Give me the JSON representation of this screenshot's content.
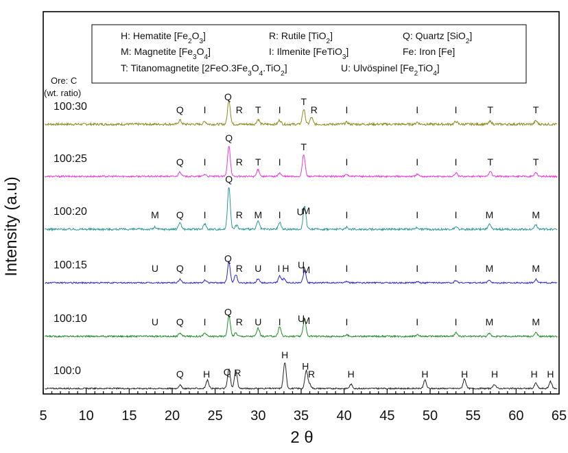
{
  "chart_data": {
    "type": "line",
    "title": "",
    "xlabel": "2 θ",
    "ylabel": "Intensity (a.u)",
    "xlim": [
      5,
      65
    ],
    "xticks": [
      "5",
      "10",
      "15",
      "20",
      "25",
      "30",
      "35",
      "40",
      "45",
      "50",
      "55",
      "60",
      "65"
    ],
    "legend": [
      [
        "H: Hematite  [Fe",
        "2",
        "O",
        "3",
        "]"
      ],
      [
        "R: Rutile  [TiO",
        "2",
        "]"
      ],
      [
        "Q: Quartz  [SiO",
        "2",
        "]"
      ],
      [
        "M: Magnetite [Fe",
        "3",
        "O",
        "4",
        "]"
      ],
      [
        "I: Ilmenite [FeTiO",
        "3",
        "]"
      ],
      [
        "Fe: Iron     [Fe]"
      ],
      [
        "T: Titanomagnetite [2FeO.3Fe",
        "3",
        "O",
        "4",
        ".TiO",
        "2",
        "]"
      ],
      [
        "U: Ulvöspinel [Fe",
        "2",
        "TiO",
        "4",
        "]"
      ]
    ],
    "ore_note": [
      "Ore: C",
      "(wt. ratio)"
    ],
    "series": [
      {
        "name": "100:30",
        "color": "#8c8a1f",
        "base": 181,
        "amp": 0.85,
        "peaks": [
          [
            26.6,
            35
          ],
          [
            35.3,
            22
          ],
          [
            36.2,
            10
          ],
          [
            20.9,
            6
          ],
          [
            30,
            7
          ],
          [
            23.8,
            4
          ],
          [
            32.5,
            6
          ],
          [
            40.3,
            3
          ],
          [
            48.5,
            3
          ],
          [
            53,
            4
          ],
          [
            57,
            4
          ],
          [
            62.3,
            5
          ]
        ],
        "labels": [
          [
            "Q",
            20.9,
            "base"
          ],
          [
            "I",
            23.8,
            "base"
          ],
          [
            "Q",
            26.5,
            "peak"
          ],
          [
            "R",
            27.8,
            "base"
          ],
          [
            "T",
            30,
            "base"
          ],
          [
            "I",
            32.5,
            "base"
          ],
          [
            "T",
            35.3,
            "peak"
          ],
          [
            "R",
            36.5,
            "base"
          ],
          [
            "I",
            40.3,
            "base"
          ],
          [
            "I",
            48.5,
            "base"
          ],
          [
            "I",
            53,
            "base"
          ],
          [
            "T",
            57,
            "base"
          ],
          [
            "T",
            62.3,
            "base"
          ]
        ]
      },
      {
        "name": "100:25",
        "color": "#e838d8",
        "base": 257,
        "amp": 0.6,
        "peaks": [
          [
            26.6,
            45
          ],
          [
            35.3,
            32
          ],
          [
            30,
            10
          ],
          [
            20.9,
            7
          ],
          [
            23.8,
            3
          ],
          [
            32.5,
            5
          ],
          [
            40.3,
            3
          ],
          [
            48.5,
            3
          ],
          [
            53,
            5
          ],
          [
            57,
            8
          ],
          [
            62.3,
            6
          ]
        ],
        "labels": [
          [
            "Q",
            20.9,
            "base"
          ],
          [
            "I",
            23.8,
            "base"
          ],
          [
            "Q",
            26.6,
            "peak"
          ],
          [
            "R",
            27.8,
            "base"
          ],
          [
            "T",
            30,
            "base"
          ],
          [
            "I",
            32.5,
            "base"
          ],
          [
            "T",
            35.3,
            "peak"
          ],
          [
            "I",
            40.3,
            "base"
          ],
          [
            "I",
            48.5,
            "base"
          ],
          [
            "I",
            53,
            "base"
          ],
          [
            "T",
            57,
            "base"
          ],
          [
            "T",
            62.3,
            "base"
          ]
        ]
      },
      {
        "name": "100:20",
        "color": "#2a9898",
        "base": 334,
        "amp": 0.75,
        "peaks": [
          [
            26.6,
            62
          ],
          [
            35.4,
            35
          ],
          [
            30,
            12
          ],
          [
            20.9,
            10
          ],
          [
            23.8,
            8
          ],
          [
            32.5,
            10
          ],
          [
            27.5,
            6
          ],
          [
            40.3,
            3
          ],
          [
            48.5,
            3
          ],
          [
            53,
            3
          ],
          [
            56.9,
            7
          ],
          [
            62.3,
            7
          ],
          [
            18,
            3
          ]
        ],
        "labels": [
          [
            "M",
            18,
            "base"
          ],
          [
            "Q",
            20.9,
            "base"
          ],
          [
            "I",
            23.8,
            "base"
          ],
          [
            "Q",
            26.6,
            "peak"
          ],
          [
            "R",
            27.8,
            "base"
          ],
          [
            "M",
            30,
            "base"
          ],
          [
            "I",
            32.5,
            "base"
          ],
          [
            "U",
            34.9,
            "peakhi"
          ],
          [
            "M",
            35.6,
            "peak"
          ],
          [
            "I",
            40.3,
            "base"
          ],
          [
            "I",
            48.5,
            "base"
          ],
          [
            "I",
            53,
            "base"
          ],
          [
            "M",
            56.9,
            "base"
          ],
          [
            "M",
            62.3,
            "base"
          ]
        ]
      },
      {
        "name": "100:15",
        "color": "#2323d8",
        "base": 412,
        "amp": 0.5,
        "peaks": [
          [
            26.6,
            30
          ],
          [
            27.4,
            12
          ],
          [
            35.4,
            18
          ],
          [
            32.5,
            10
          ],
          [
            33,
            6
          ],
          [
            30,
            6
          ],
          [
            20.9,
            5
          ],
          [
            23.8,
            4
          ],
          [
            40.3,
            2
          ],
          [
            48.5,
            2
          ],
          [
            53,
            3
          ],
          [
            56.9,
            4
          ],
          [
            62.3,
            5
          ]
        ],
        "labels": [
          [
            "U",
            18,
            "base"
          ],
          [
            "Q",
            20.9,
            "base"
          ],
          [
            "I",
            23.8,
            "base"
          ],
          [
            "Q",
            26.5,
            "peak"
          ],
          [
            "R",
            27.8,
            "base"
          ],
          [
            "U",
            30,
            "base"
          ],
          [
            "I",
            32.4,
            "base"
          ],
          [
            "H",
            33.2,
            "base"
          ],
          [
            "U",
            35,
            "peakhi"
          ],
          [
            "M",
            35.6,
            "peak"
          ],
          [
            "I",
            40.3,
            "base"
          ],
          [
            "I",
            48.5,
            "base"
          ],
          [
            "I",
            53,
            "base"
          ],
          [
            "M",
            56.9,
            "base"
          ],
          [
            "M",
            62.3,
            "base"
          ]
        ]
      },
      {
        "name": "100:10",
        "color": "#1f8a2a",
        "base": 490,
        "amp": 0.6,
        "peaks": [
          [
            26.6,
            30
          ],
          [
            35.4,
            26
          ],
          [
            30,
            12
          ],
          [
            32.5,
            14
          ],
          [
            20.9,
            5
          ],
          [
            23.8,
            5
          ],
          [
            27.4,
            5
          ],
          [
            40.3,
            2
          ],
          [
            48.5,
            2
          ],
          [
            53,
            5
          ],
          [
            56.9,
            4
          ],
          [
            62.3,
            5
          ]
        ],
        "labels": [
          [
            "U",
            18,
            "base"
          ],
          [
            "Q",
            20.9,
            "base"
          ],
          [
            "I",
            23.8,
            "base"
          ],
          [
            "Q",
            26.5,
            "peak"
          ],
          [
            "R",
            27.8,
            "base"
          ],
          [
            "U",
            30,
            "base"
          ],
          [
            "I",
            32.5,
            "base"
          ],
          [
            "U",
            35,
            "peakhi"
          ],
          [
            "M",
            35.6,
            "peak"
          ],
          [
            "I",
            40.3,
            "base"
          ],
          [
            "I",
            48.5,
            "base"
          ],
          [
            "I",
            53,
            "base"
          ],
          [
            "M",
            56.9,
            "base"
          ],
          [
            "M",
            62.3,
            "base"
          ]
        ]
      },
      {
        "name": "100:0",
        "color": "#202020",
        "base": 566,
        "amp": 0.5,
        "peaks": [
          [
            33.1,
            38
          ],
          [
            35.6,
            26
          ],
          [
            26.6,
            28
          ],
          [
            27.4,
            26
          ],
          [
            24.1,
            12
          ],
          [
            20.9,
            5
          ],
          [
            36,
            6
          ],
          [
            40.8,
            6
          ],
          [
            49.4,
            12
          ],
          [
            54,
            14
          ],
          [
            57.5,
            6
          ],
          [
            62.3,
            8
          ],
          [
            64,
            10
          ]
        ],
        "labels": [
          [
            "Q",
            20.9,
            "base"
          ],
          [
            "H",
            24,
            "base"
          ],
          [
            "Q",
            26.4,
            "peak"
          ],
          [
            "R",
            27.6,
            "peak"
          ],
          [
            "H",
            33.1,
            "peak"
          ],
          [
            "H",
            35.5,
            "peak"
          ],
          [
            "R",
            36.2,
            "base"
          ],
          [
            "H",
            40.8,
            "base"
          ],
          [
            "H",
            49.4,
            "base"
          ],
          [
            "H",
            54,
            "base"
          ],
          [
            "H",
            57.5,
            "base"
          ],
          [
            "H",
            62.1,
            "base"
          ],
          [
            "H",
            64,
            "base"
          ]
        ]
      }
    ]
  }
}
